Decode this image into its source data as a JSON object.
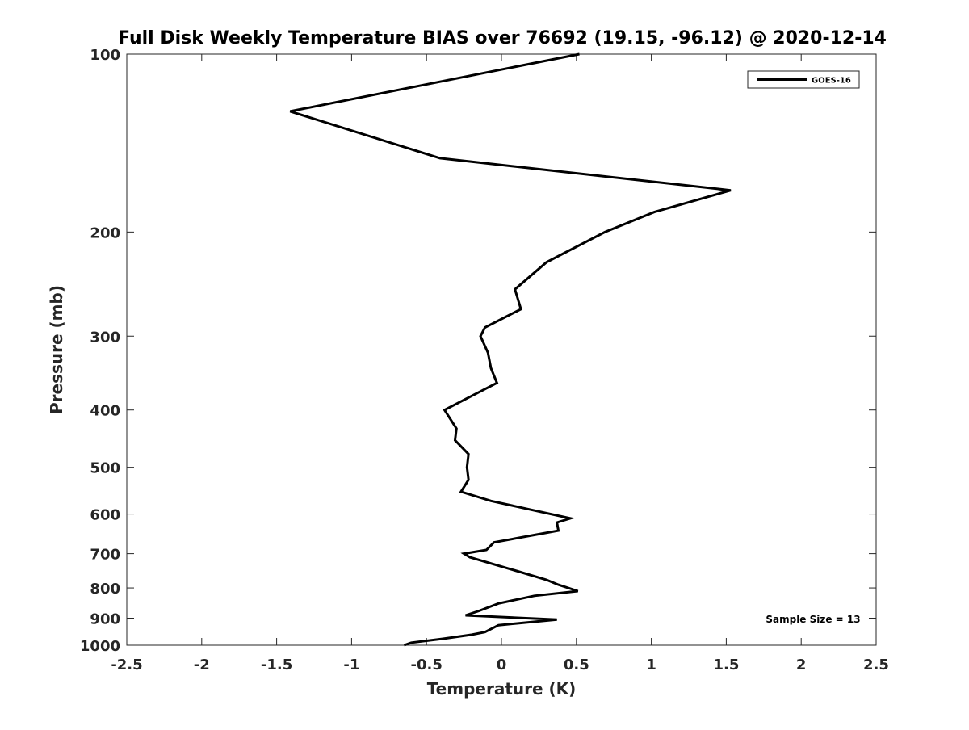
{
  "chart_data": {
    "type": "line",
    "title": "Full Disk Weekly Temperature BIAS over 76692 (19.15, -96.12) @ 2020-12-14",
    "xlabel": "Temperature (K)",
    "ylabel": "Pressure (mb)",
    "xlim": [
      -2.5,
      2.5
    ],
    "ylim": [
      100,
      1000
    ],
    "y_scale": "log",
    "y_reversed": true,
    "x_ticks": [
      -2.5,
      -2,
      -1.5,
      -1,
      -0.5,
      0,
      0.5,
      1,
      1.5,
      2,
      2.5
    ],
    "x_tick_labels": [
      "-2.5",
      "-2",
      "-1.5",
      "-1",
      "-0.5",
      "0",
      "0.5",
      "1",
      "1.5",
      "2",
      "2.5"
    ],
    "y_ticks": [
      100,
      200,
      300,
      400,
      500,
      600,
      700,
      800,
      900,
      1000
    ],
    "y_tick_labels": [
      "100",
      "200",
      "300",
      "400",
      "500",
      "600",
      "700",
      "800",
      "900",
      "1000"
    ],
    "grid": false,
    "legend_position": "top-right",
    "annotation": "Sample Size = 13",
    "series": [
      {
        "name": "GOES-16",
        "color": "#000000",
        "points": [
          {
            "x": 0.52,
            "y": 100
          },
          {
            "x": -1.41,
            "y": 125
          },
          {
            "x": -0.41,
            "y": 150
          },
          {
            "x": 1.53,
            "y": 170
          },
          {
            "x": 1.02,
            "y": 185
          },
          {
            "x": 0.69,
            "y": 200
          },
          {
            "x": 0.3,
            "y": 225
          },
          {
            "x": 0.09,
            "y": 250
          },
          {
            "x": 0.13,
            "y": 270
          },
          {
            "x": -0.11,
            "y": 290
          },
          {
            "x": -0.14,
            "y": 300
          },
          {
            "x": -0.09,
            "y": 320
          },
          {
            "x": -0.07,
            "y": 340
          },
          {
            "x": -0.03,
            "y": 360
          },
          {
            "x": -0.38,
            "y": 400
          },
          {
            "x": -0.3,
            "y": 430
          },
          {
            "x": -0.31,
            "y": 450
          },
          {
            "x": -0.22,
            "y": 475
          },
          {
            "x": -0.23,
            "y": 500
          },
          {
            "x": -0.22,
            "y": 525
          },
          {
            "x": -0.27,
            "y": 550
          },
          {
            "x": -0.07,
            "y": 570
          },
          {
            "x": 0.2,
            "y": 590
          },
          {
            "x": 0.46,
            "y": 610
          },
          {
            "x": 0.37,
            "y": 620
          },
          {
            "x": 0.38,
            "y": 640
          },
          {
            "x": 0.23,
            "y": 650
          },
          {
            "x": -0.05,
            "y": 670
          },
          {
            "x": -0.1,
            "y": 690
          },
          {
            "x": -0.25,
            "y": 700
          },
          {
            "x": -0.21,
            "y": 710
          },
          {
            "x": 0.11,
            "y": 750
          },
          {
            "x": 0.3,
            "y": 775
          },
          {
            "x": 0.38,
            "y": 790
          },
          {
            "x": 0.51,
            "y": 810
          },
          {
            "x": 0.22,
            "y": 825
          },
          {
            "x": -0.02,
            "y": 850
          },
          {
            "x": -0.15,
            "y": 875
          },
          {
            "x": -0.24,
            "y": 890
          },
          {
            "x": 0.37,
            "y": 905
          },
          {
            "x": -0.02,
            "y": 925
          },
          {
            "x": -0.11,
            "y": 950
          },
          {
            "x": -0.2,
            "y": 960
          },
          {
            "x": -0.39,
            "y": 975
          },
          {
            "x": -0.6,
            "y": 990
          },
          {
            "x": -0.65,
            "y": 1000
          }
        ]
      }
    ]
  }
}
